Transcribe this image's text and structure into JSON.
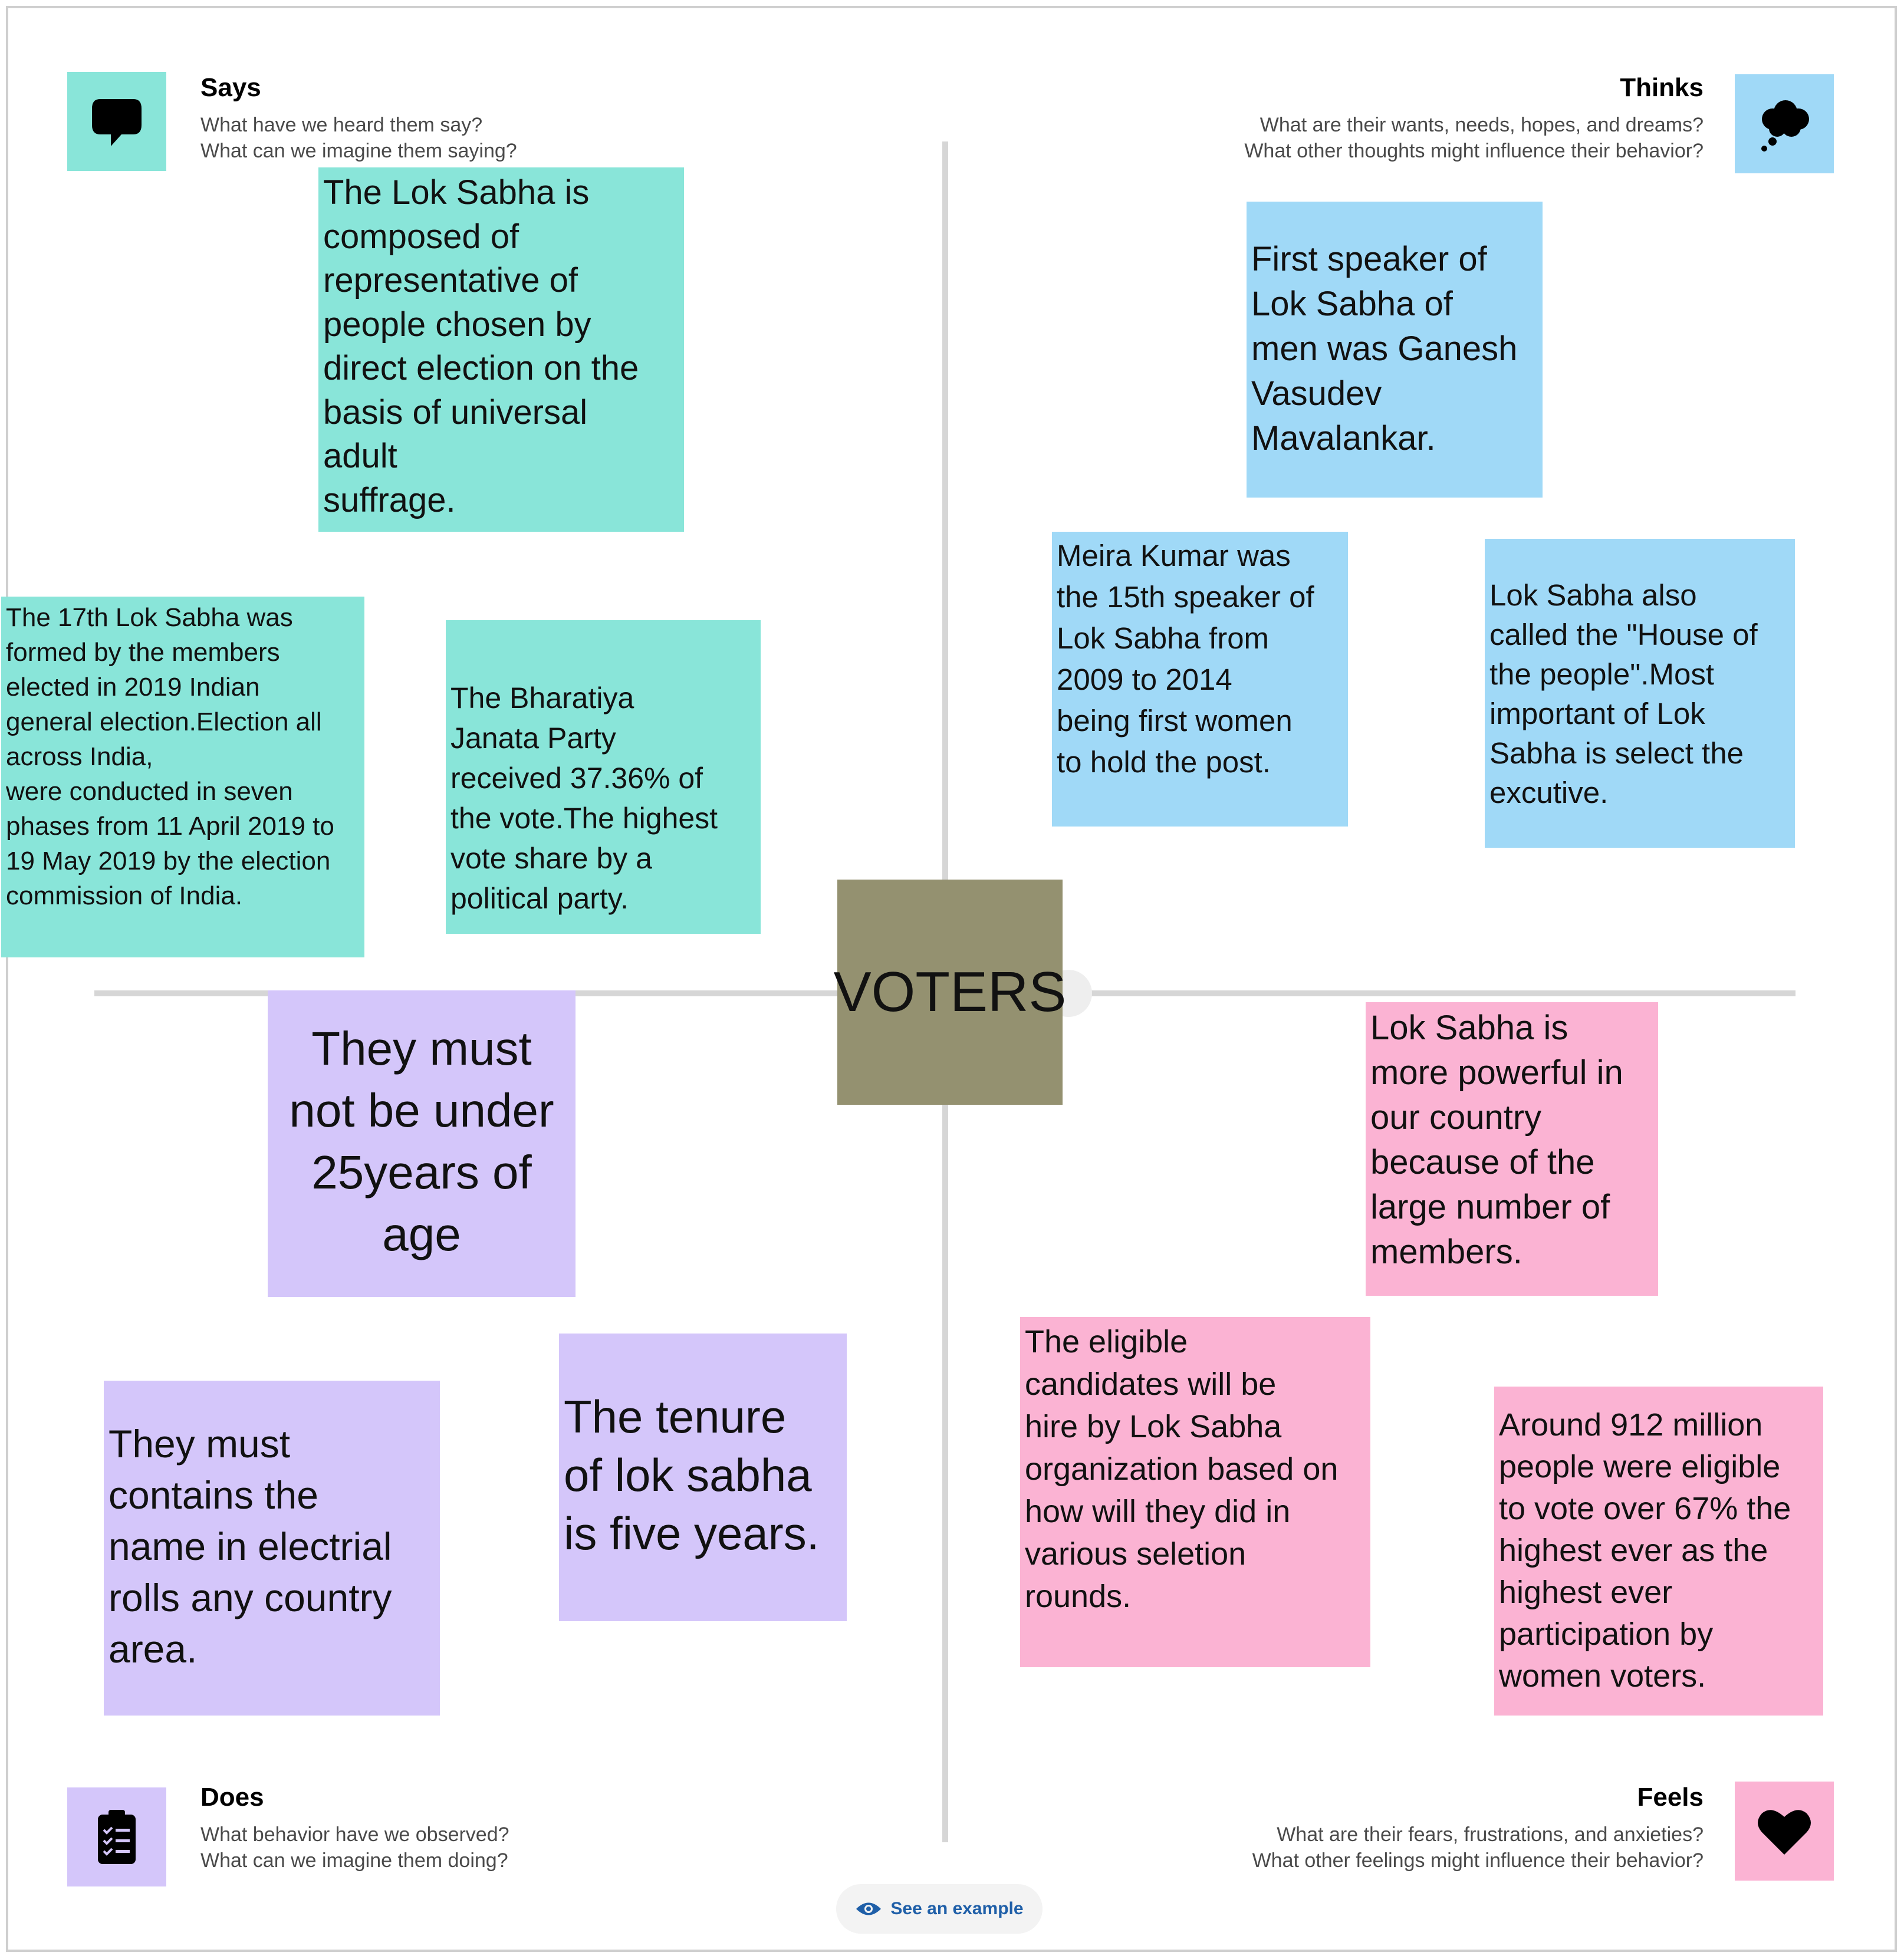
{
  "quadrants": {
    "says": {
      "title": "Says",
      "line1": "What have we heard them say?",
      "line2": "What can we imagine them saying?",
      "icon": "speech-bubble-icon"
    },
    "thinks": {
      "title": "Thinks",
      "line1": "What are their wants, needs, hopes, and dreams?",
      "line2": "What other thoughts might influence their behavior?",
      "icon": "thought-cloud-icon"
    },
    "does": {
      "title": "Does",
      "line1": "What behavior have we observed?",
      "line2": "What can we imagine them doing?",
      "icon": "clipboard-checklist-icon"
    },
    "feels": {
      "title": "Feels",
      "line1": "What are their fears, frustrations, and anxieties?",
      "line2": "What other feelings might influence their behavior?",
      "icon": "heart-icon"
    }
  },
  "center": {
    "label": "VOTERS"
  },
  "notes": {
    "says_1": " The Lok Sabha is\ncomposed of\nrepresentative of\npeople chosen by\ndirect election on the\nbasis of universal\nadult\nsuffrage.",
    "says_2": "The 17th Lok Sabha was\nformed by the members\nelected in 2019 Indian\ngeneral election.Election all\nacross India,\nwere conducted in seven\nphases from 11 April 2019 to\n19 May 2019 by the election\ncommission of India.",
    "says_3": "    The Bharatiya\nJanata Party\nreceived 37.36% of\nthe vote.The highest\nvote share by a\npolitical party.",
    "thinks_1": " First speaker of\nLok Sabha of\nmen was Ganesh\nVasudev\nMavalankar.",
    "thinks_2": " Meira Kumar was\nthe 15th speaker of\nLok Sabha from\n2009 to 2014\nbeing first women\nto hold the post.",
    "thinks_3": "Lok Sabha also\ncalled the \"House of\nthe people\".Most\nimportant of Lok\nSabha is select the\nexcutive.",
    "does_1": "They must\nnot be under\n25years of\nage",
    "does_2": " They must\ncontains the\nname in electrial\nrolls any country\narea.",
    "does_3": " The tenure\nof lok sabha\nis five years.",
    "feels_1": "Lok Sabha is\nmore powerful in\nour country\nbecause of the\nlarge number of\nmembers.",
    "feels_2": "The eligible\ncandidates will be\nhire by Lok Sabha\norganization based on\nhow will they did in\nvarious seletion\nrounds.",
    "feels_3": "Around 912 million\npeople were eligible\nto vote over 67% the\nhighest ever as the\nhighest ever\nparticipation by\nwomen voters."
  },
  "example_button": {
    "label": "See an example",
    "icon": "eye-icon"
  },
  "colors": {
    "says": "#89e5d9",
    "thinks": "#a0d9f7",
    "does": "#d4c6fa",
    "feels": "#fbb3d3",
    "center": "#949170",
    "axis": "#d6d6d6",
    "link": "#1f5fa8"
  }
}
